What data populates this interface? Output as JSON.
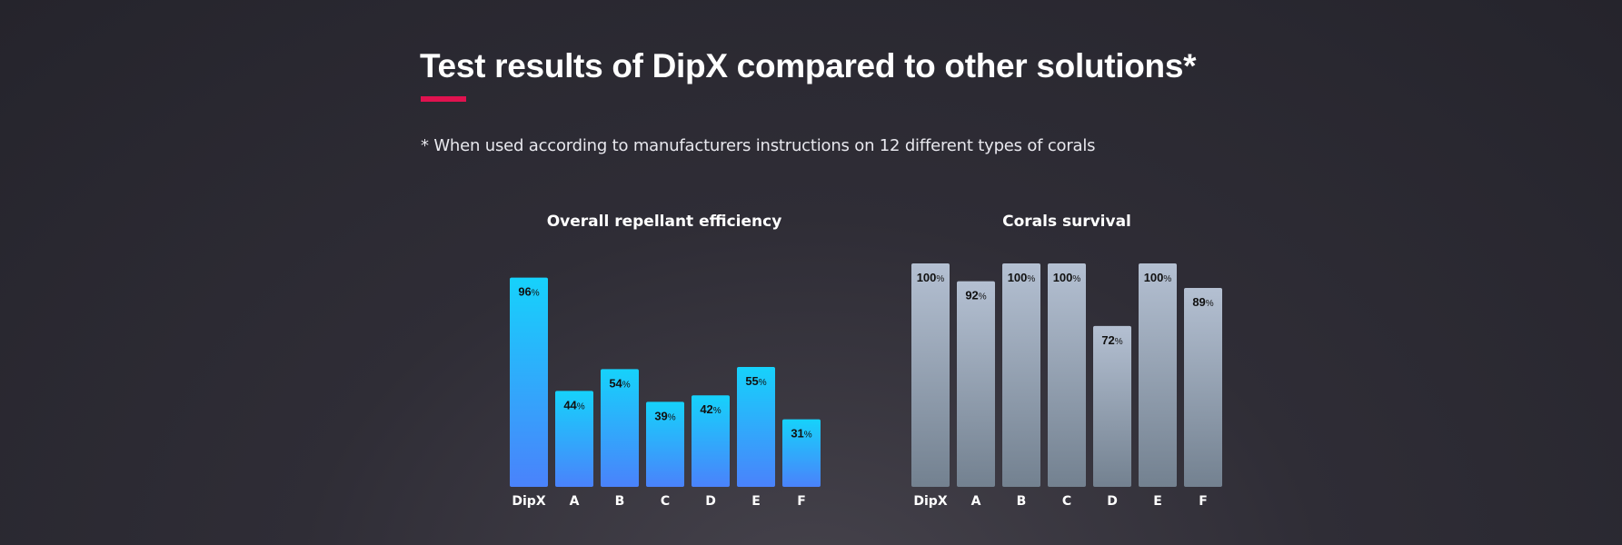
{
  "header": {
    "title": "Test results of DipX compared to other solutions*",
    "note": "* When used according to manufacturers instructions on 12 different types of corals",
    "accent_color": "#e0124f"
  },
  "chart_data": [
    {
      "type": "bar",
      "title": "Overall repellant efficiency",
      "categories": [
        "DipX",
        "A",
        "B",
        "C",
        "D",
        "E",
        "F"
      ],
      "values": [
        96,
        44,
        54,
        39,
        42,
        55,
        31
      ],
      "unit": "%",
      "ylim": [
        0,
        100
      ],
      "xlabel": "",
      "ylabel": "",
      "grid": false,
      "colors": {
        "top": "#16d2fb",
        "bottom": "#4a82fb"
      }
    },
    {
      "type": "bar",
      "title": "Corals survival",
      "categories": [
        "DipX",
        "A",
        "B",
        "C",
        "D",
        "E",
        "F"
      ],
      "values": [
        100,
        92,
        100,
        100,
        72,
        100,
        89
      ],
      "unit": "%",
      "ylim": [
        0,
        100
      ],
      "xlabel": "",
      "ylabel": "",
      "grid": false,
      "colors": {
        "top": "#b4c0d2",
        "bottom": "#738190"
      }
    }
  ]
}
